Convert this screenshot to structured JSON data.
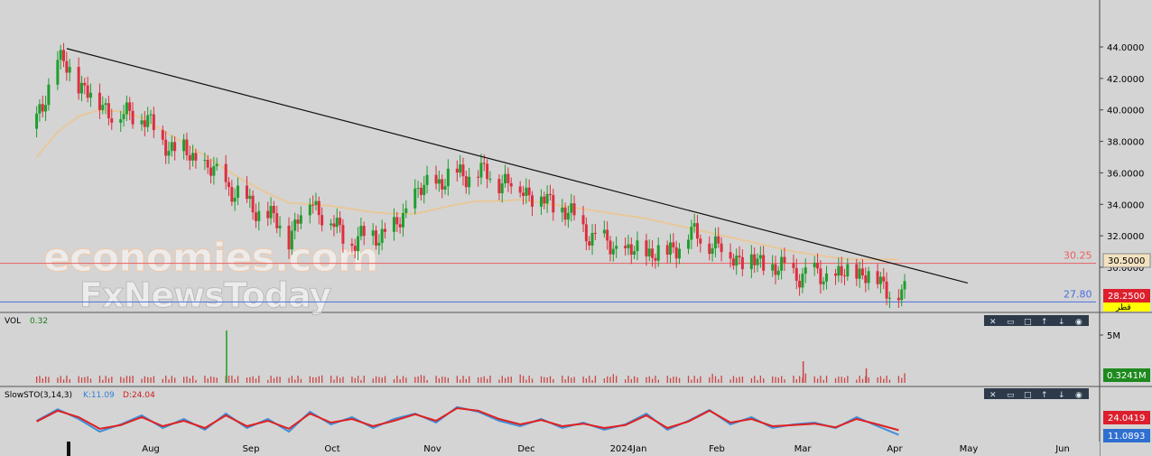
{
  "watermark": {
    "line1": "economies.com",
    "line2": "FxNewsToday"
  },
  "price_axis": {
    "ticks": [
      "44.0000",
      "42.0000",
      "40.0000",
      "38.0000",
      "36.0000",
      "34.0000",
      "32.0000",
      "30.0000"
    ],
    "last_price": "28.2500",
    "ma_value": "30.5000",
    "hidden_badge": "قطر"
  },
  "levels": [
    {
      "label": "30.25",
      "value": 30.25,
      "color": "#e86060"
    },
    {
      "label": "27.80",
      "value": 27.8,
      "color": "#4a6fe0"
    }
  ],
  "volume_panel": {
    "title": "VOL",
    "value": "0.32",
    "axis_label": "5M",
    "last_badge": "0.3241M"
  },
  "stoch_panel": {
    "title": "SlowSTO(3,14,3)",
    "k_label": "K:11.09",
    "d_label": "D:24.04",
    "k_badge": "11.0893",
    "d_badge": "24.0419"
  },
  "panel_controls": [
    "close-icon",
    "restore-icon",
    "maximize-icon",
    "move-up-icon",
    "move-down-icon",
    "settings-icon"
  ],
  "x_axis": {
    "labels": [
      "Aug",
      "Sep",
      "Oct",
      "Nov",
      "Dec",
      "2024Jan",
      "Feb",
      "Mar",
      "Apr",
      "May",
      "Jun"
    ]
  },
  "colors": {
    "up": "#1f9e2e",
    "down": "#dc2f3f",
    "trendline": "#111111",
    "ma": "#e8c89a",
    "k_line": "#3f8fd8",
    "d_line": "#e02020",
    "vol_bar": "#cc4444"
  },
  "chart_data": {
    "type": "line",
    "title": "",
    "price_range": [
      27.0,
      44.9
    ],
    "x": [
      "2023-07-03",
      "2023-07-10",
      "2023-07-17",
      "2023-07-24",
      "2023-07-31",
      "2023-08-07",
      "2023-08-14",
      "2023-08-21",
      "2023-08-28",
      "2023-09-04",
      "2023-09-11",
      "2023-09-18",
      "2023-09-25",
      "2023-10-02",
      "2023-10-09",
      "2023-10-16",
      "2023-10-23",
      "2023-10-30",
      "2023-11-06",
      "2023-11-13",
      "2023-11-20",
      "2023-11-27",
      "2023-12-04",
      "2023-12-11",
      "2023-12-18",
      "2023-12-25",
      "2024-01-01",
      "2024-01-08",
      "2024-01-15",
      "2024-01-22",
      "2024-01-29",
      "2024-02-05",
      "2024-02-12",
      "2024-02-19",
      "2024-02-26",
      "2024-03-04",
      "2024-03-11",
      "2024-03-18",
      "2024-03-25",
      "2024-04-01",
      "2024-04-08",
      "2024-04-15"
    ],
    "series": [
      {
        "values": [
          39.2,
          43.2,
          41.8,
          40.4,
          39.6,
          39.8,
          38.0,
          37.3,
          36.4,
          35.3,
          34.0,
          33.3,
          32.0,
          34.4,
          32.8,
          31.6,
          32.1,
          32.3,
          34.6,
          35.4,
          35.9,
          36.0,
          35.6,
          35.1,
          34.3,
          33.8,
          32.4,
          31.5,
          30.9,
          31.0,
          30.9,
          32.1,
          31.7,
          30.8,
          30.4,
          30.0,
          29.6,
          29.5,
          29.3,
          29.8,
          29.2,
          28.25
        ]
      },
      {
        "values": [
          37.0,
          38.6,
          39.6,
          40.0,
          39.9,
          39.5,
          38.7,
          37.9,
          37.1,
          36.2,
          35.4,
          34.7,
          34.1,
          34.0,
          33.9,
          33.7,
          33.5,
          33.4,
          33.4,
          33.7,
          34.0,
          34.2,
          34.2,
          34.3,
          34.1,
          33.9,
          33.7,
          33.5,
          33.3,
          33.1,
          32.8,
          32.5,
          32.2,
          31.9,
          31.6,
          31.3,
          31.0,
          30.8,
          30.6,
          30.5,
          30.5,
          30.5
        ]
      }
    ],
    "trendline": {
      "from": {
        "x": "2023-07-13",
        "y": 43.9
      },
      "to": {
        "x": "2024-05-08",
        "y": 29.0
      }
    },
    "volume_axis_max": "5M",
    "stoch_k": [
      50,
      82,
      55,
      20,
      40,
      65,
      30,
      55,
      25,
      70,
      30,
      55,
      20,
      75,
      40,
      60,
      30,
      55,
      70,
      45,
      88,
      75,
      50,
      35,
      55,
      30,
      45,
      25,
      40,
      70,
      25,
      50,
      80,
      40,
      60,
      30,
      40,
      45,
      30,
      60,
      35,
      11.09
    ],
    "stoch_d": [
      48,
      78,
      60,
      28,
      38,
      60,
      35,
      50,
      30,
      65,
      35,
      50,
      28,
      70,
      45,
      55,
      35,
      50,
      68,
      50,
      85,
      78,
      55,
      40,
      52,
      35,
      42,
      30,
      38,
      65,
      30,
      48,
      78,
      45,
      55,
      35,
      38,
      42,
      32,
      55,
      40,
      24.04
    ]
  }
}
